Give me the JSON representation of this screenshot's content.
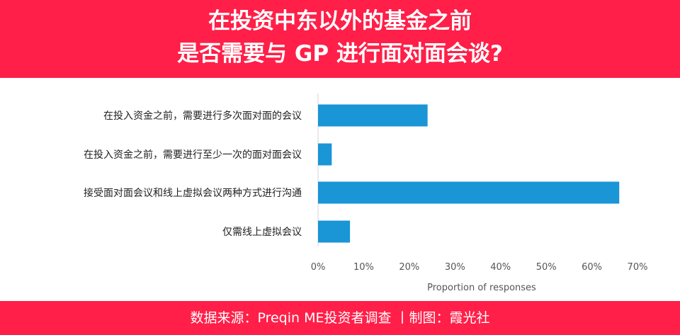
{
  "header": {
    "title_line1": "在投资中东以外的基金之前",
    "title_line2": "是否需要与 GP 进行面对面会谈?"
  },
  "footer": {
    "source": "数据来源：Preqin ME投资者调查 丨制图：霞光社"
  },
  "colors": {
    "banner": "#ff1f48",
    "bar": "#1a95d6"
  },
  "chart_data": {
    "type": "bar",
    "orientation": "horizontal",
    "categories": [
      "在投入资金之前，需要进行多次面对面的会议",
      "在投入资金之前，需要进行至少一次的面对面会议",
      "接受面对面会议和线上虚拟会议两种方式进行沟通",
      "仅需线上虚拟会议"
    ],
    "values": [
      24,
      3,
      66,
      7
    ],
    "xlabel": "Proportion of responses",
    "xlim": [
      0,
      70
    ],
    "xticks": [
      "0%",
      "10%",
      "20%",
      "30%",
      "40%",
      "50%",
      "60%",
      "70%"
    ],
    "grid": false,
    "legend": "none"
  }
}
